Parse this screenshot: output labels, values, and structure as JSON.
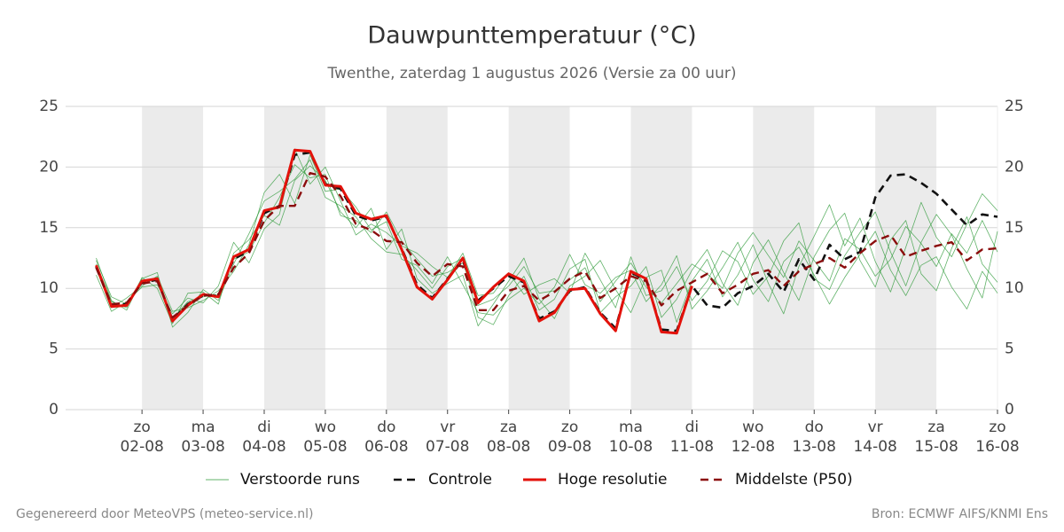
{
  "chart_data": {
    "type": "line",
    "title": "Dauwpunttemperatuur (°C)",
    "subtitle": "Twenthe, zaterdag  1 augustus 2026 (Versie za 00 uur)",
    "footer_left": "Gegenereerd door MeteoVPS (meteo-service.nl)",
    "footer_right": "Bron: ECMWF AIFS/KNMI Ens",
    "x": [
      0,
      6,
      12,
      18,
      24,
      30,
      36,
      42,
      48,
      54,
      60,
      66,
      72,
      78,
      84,
      90,
      96,
      102,
      108,
      114,
      120,
      126,
      132,
      138,
      144,
      150,
      156,
      162,
      168,
      174,
      180,
      186,
      192,
      198,
      204,
      210,
      216,
      222,
      228,
      234,
      240,
      246,
      252,
      258,
      264,
      270,
      276,
      282,
      288,
      294,
      300,
      306,
      312,
      318,
      324,
      330,
      336,
      342,
      348,
      354
    ],
    "xlim": [
      -12,
      354
    ],
    "xticks": [
      {
        "value": 18,
        "label": "zo",
        "date": "02-08"
      },
      {
        "value": 42,
        "label": "ma",
        "date": "03-08"
      },
      {
        "value": 66,
        "label": "di",
        "date": "04-08"
      },
      {
        "value": 90,
        "label": "wo",
        "date": "05-08"
      },
      {
        "value": 114,
        "label": "do",
        "date": "06-08"
      },
      {
        "value": 138,
        "label": "vr",
        "date": "07-08"
      },
      {
        "value": 162,
        "label": "za",
        "date": "08-08"
      },
      {
        "value": 186,
        "label": "zo",
        "date": "09-08"
      },
      {
        "value": 210,
        "label": "ma",
        "date": "10-08"
      },
      {
        "value": 234,
        "label": "di",
        "date": "11-08"
      },
      {
        "value": 258,
        "label": "wo",
        "date": "12-08"
      },
      {
        "value": 282,
        "label": "do",
        "date": "13-08"
      },
      {
        "value": 306,
        "label": "vr",
        "date": "14-08"
      },
      {
        "value": 330,
        "label": "za",
        "date": "15-08"
      },
      {
        "value": 354,
        "label": "zo",
        "date": "16-08"
      }
    ],
    "ylim": [
      0,
      25
    ],
    "yticks": [
      0,
      5,
      10,
      15,
      20,
      25
    ],
    "grid": true,
    "legend": "bottom",
    "series": [
      {
        "name": "Verstoorde runs",
        "color": "#2e9a38",
        "width": 0.8,
        "dash": false,
        "runs": [
          [
            12.5,
            9.0,
            8.2,
            10.8,
            11.3,
            6.8,
            8.0,
            9.9,
            9.0,
            12.0,
            14.5,
            17.2,
            18.0,
            19.0,
            20.6,
            17.5,
            16.8,
            15.9,
            14.1,
            13.0,
            12.8,
            11.5,
            10.0,
            11.8,
            12.5,
            7.6,
            7.0,
            9.4,
            11.0,
            8.2,
            9.1,
            11.6,
            12.4,
            8.0,
            9.3,
            10.2,
            11.8,
            7.6,
            9.1,
            11.5,
            13.2,
            10.4,
            8.6,
            12.1,
            14.0,
            11.3,
            9.0,
            12.6,
            14.8,
            16.2,
            12.3,
            10.1,
            14.0,
            15.6,
            11.2,
            9.8,
            13.3,
            15.9,
            12.0,
            10.5
          ],
          [
            11.1,
            8.1,
            8.9,
            10.1,
            10.3,
            7.9,
            9.2,
            8.8,
            10.2,
            13.8,
            12.1,
            14.9,
            16.1,
            21.5,
            18.6,
            20.0,
            17.2,
            14.4,
            15.3,
            14.6,
            13.5,
            12.9,
            11.8,
            10.9,
            12.9,
            9.4,
            9.6,
            11.3,
            9.5,
            10.3,
            10.8,
            9.6,
            12.9,
            10.7,
            8.4,
            12.6,
            9.4,
            9.8,
            11.8,
            9.0,
            10.6,
            13.1,
            12.2,
            9.5,
            11.0,
            13.9,
            15.4,
            10.8,
            9.9,
            12.7,
            14.6,
            16.3,
            13.0,
            10.2,
            13.8,
            16.1,
            14.4,
            11.6,
            9.2,
            14.7
          ],
          [
            12.0,
            8.9,
            8.4,
            10.9,
            10.0,
            7.1,
            9.6,
            9.7,
            8.7,
            12.9,
            14.0,
            16.0,
            15.2,
            18.9,
            20.1,
            18.9,
            16.3,
            15.0,
            16.6,
            13.2,
            14.9,
            10.8,
            9.6,
            10.4,
            11.1,
            6.9,
            8.7,
            10.6,
            12.5,
            9.1,
            7.5,
            10.2,
            11.0,
            12.3,
            9.9,
            8.0,
            10.9,
            11.5,
            7.2,
            10.6,
            12.4,
            9.3,
            11.1,
            13.6,
            10.4,
            7.9,
            11.8,
            14.3,
            16.9,
            13.5,
            15.8,
            12.2,
            9.7,
            13.4,
            17.1,
            14.2,
            12.6,
            15.3,
            17.8,
            16.4
          ],
          [
            11.6,
            8.4,
            9.2,
            10.2,
            11.0,
            8.1,
            8.4,
            9.0,
            9.8,
            11.4,
            13.6,
            17.9,
            19.4,
            17.0,
            21.0,
            18.0,
            18.2,
            16.7,
            14.8,
            15.5,
            12.4,
            11.9,
            10.4,
            12.6,
            10.3,
            8.0,
            7.8,
            9.1,
            10.0,
            8.7,
            10.1,
            12.8,
            10.3,
            9.6,
            10.9,
            11.5,
            8.9,
            10.3,
            12.7,
            8.3,
            9.8,
            11.7,
            13.8,
            10.7,
            8.9,
            12.2,
            13.4,
            11.1,
            8.7,
            10.9,
            12.8,
            14.7,
            11.5,
            9.4,
            11.9,
            12.6,
            10.1,
            8.3,
            11.4,
            9.6
          ],
          [
            12.3,
            9.3,
            8.7,
            10.6,
            10.9,
            7.5,
            8.9,
            9.3,
            9.5,
            12.4,
            13.0,
            15.4,
            17.5,
            20.2,
            19.1,
            19.4,
            16.0,
            15.6,
            14.6,
            16.3,
            13.9,
            12.4,
            11.0,
            11.3,
            12.1,
            8.6,
            9.1,
            10.2,
            11.8,
            9.6,
            9.8,
            10.7,
            11.7,
            8.9,
            10.6,
            12.1,
            10.1,
            8.8,
            10.4,
            12.0,
            11.2,
            10.0,
            12.9,
            14.6,
            12.7,
            10.9,
            13.9,
            12.3,
            10.6,
            14.1,
            13.2,
            11.0,
            12.4,
            15.1,
            13.7,
            11.8,
            14.5,
            12.9,
            15.6,
            13.0
          ]
        ]
      },
      {
        "name": "Controle",
        "color": "#111111",
        "width": 2.6,
        "dash": true,
        "values": [
          11.8,
          8.6,
          8.7,
          10.5,
          10.7,
          7.4,
          8.7,
          9.4,
          9.4,
          12.4,
          13.1,
          16.2,
          16.8,
          21.0,
          21.2,
          18.6,
          18.2,
          16.0,
          15.6,
          15.9,
          13.3,
          10.3,
          9.2,
          10.8,
          12.3,
          9.0,
          10.0,
          11.0,
          10.5,
          7.5,
          8.1,
          9.8,
          10.1,
          8.0,
          6.7,
          11.3,
          10.7,
          6.6,
          6.5,
          10.2,
          8.6,
          8.4,
          9.6,
          10.2,
          11.2,
          9.7,
          12.4,
          10.7,
          13.6,
          12.4,
          13.0,
          17.5,
          19.3,
          19.4,
          18.7,
          17.8,
          16.5,
          15.2,
          16.1,
          15.9
        ]
      },
      {
        "name": "Hoge resolutie",
        "color": "#e3120b",
        "width": 3,
        "dash": false,
        "values": [
          11.9,
          8.5,
          8.6,
          10.6,
          10.8,
          7.3,
          8.6,
          9.5,
          9.3,
          12.6,
          13.2,
          16.4,
          16.7,
          21.4,
          21.3,
          18.5,
          18.4,
          16.2,
          15.7,
          16.0,
          13.2,
          10.1,
          9.1,
          10.7,
          12.5,
          8.8,
          10.1,
          11.2,
          10.6,
          7.3,
          8.0,
          9.9,
          10.0,
          7.9,
          6.5,
          11.4,
          10.8,
          6.4,
          6.3,
          10.2,
          null,
          null,
          null,
          null,
          null,
          null,
          null,
          null,
          null,
          null,
          null,
          null,
          null,
          null,
          null,
          null,
          null,
          null,
          null,
          null
        ]
      },
      {
        "name": "Middelste (P50)",
        "color": "#8b0d0d",
        "width": 2.4,
        "dash": true,
        "values": [
          11.7,
          8.7,
          8.8,
          10.4,
          10.6,
          7.6,
          8.6,
          9.4,
          9.5,
          11.7,
          12.9,
          15.6,
          16.8,
          16.8,
          19.5,
          19.2,
          17.6,
          15.3,
          14.8,
          13.9,
          13.8,
          12.1,
          11.0,
          12.0,
          11.8,
          8.2,
          8.2,
          9.8,
          10.2,
          9.0,
          9.7,
          10.8,
          11.4,
          9.2,
          10.0,
          11.0,
          10.6,
          8.6,
          9.8,
          10.5,
          11.2,
          9.6,
          10.3,
          11.2,
          11.5,
          10.2,
          11.4,
          12.0,
          12.5,
          11.7,
          12.9,
          13.9,
          14.4,
          12.6,
          13.1,
          13.5,
          13.8,
          12.3,
          13.2,
          13.3
        ]
      }
    ]
  }
}
